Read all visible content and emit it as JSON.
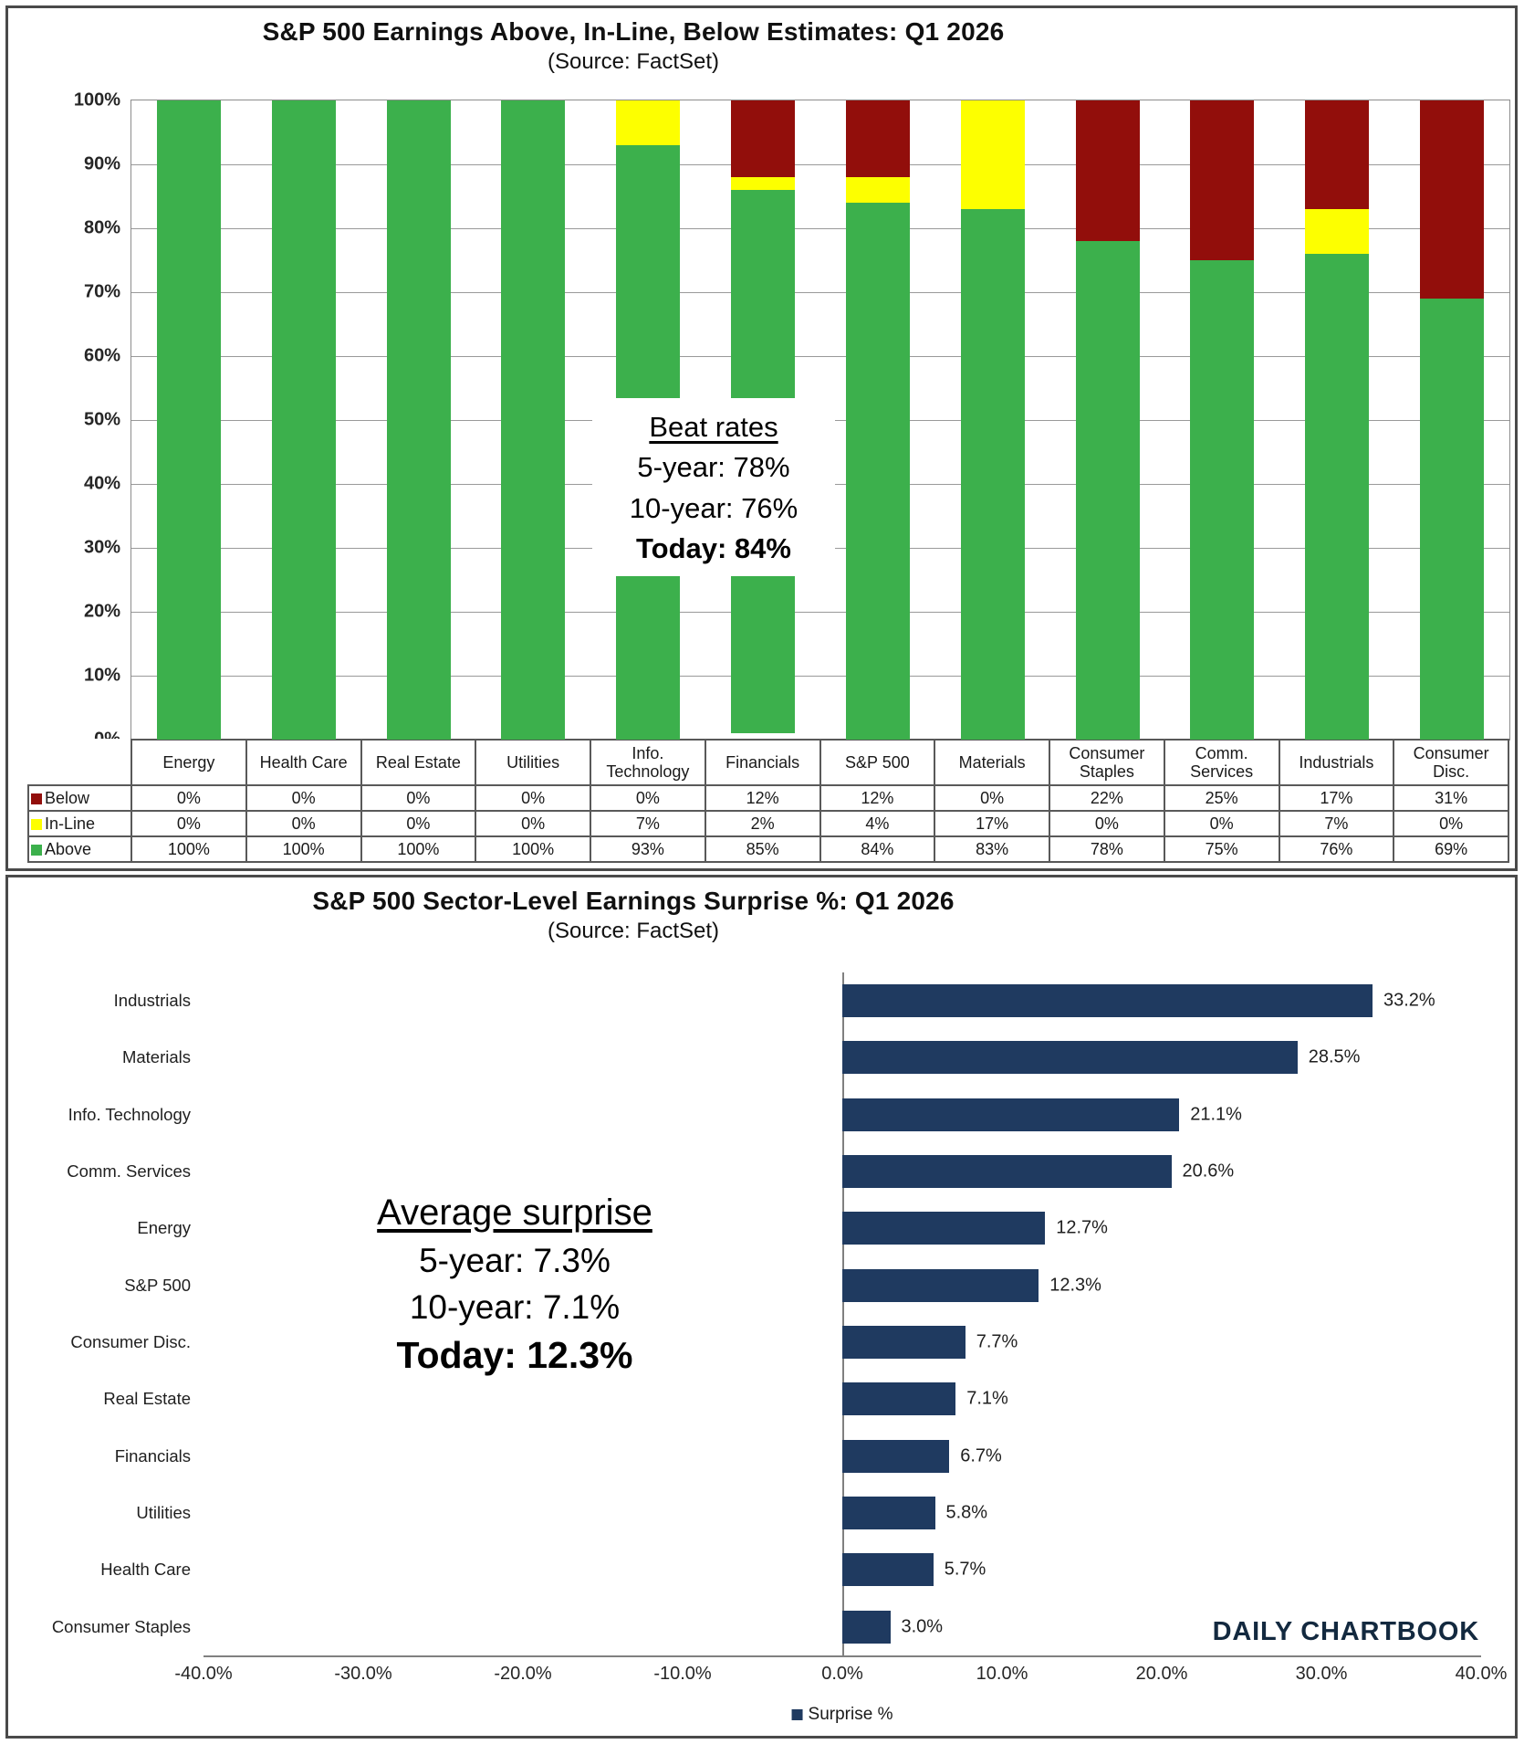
{
  "colors": {
    "above_green": "#3cb04c",
    "inline_yellow": "#fdff00",
    "below_red": "#920e0b",
    "surprise_navy": "#1f3a60",
    "grid": "#9a9a9a",
    "axis": "#808080",
    "watermark_navy": "#13293f"
  },
  "chart_data": [
    {
      "type": "bar",
      "orientation": "vertical",
      "stacked": true,
      "title": "S&P 500 Earnings Above, In-Line, Below Estimates: Q1 2026",
      "subtitle": "(Source: FactSet)",
      "categories": [
        "Energy",
        "Health Care",
        "Real Estate",
        "Utilities",
        "Info. Technology",
        "Financials",
        "S&P 500",
        "Materials",
        "Consumer Staples",
        "Comm. Services",
        "Industrials",
        "Consumer Disc."
      ],
      "series": [
        {
          "name": "Below",
          "color_key": "below_red",
          "values": [
            0,
            0,
            0,
            0,
            0,
            12,
            12,
            0,
            22,
            25,
            17,
            31
          ],
          "labels": [
            "0%",
            "0%",
            "0%",
            "0%",
            "0%",
            "12%",
            "12%",
            "0%",
            "22%",
            "25%",
            "17%",
            "31%"
          ]
        },
        {
          "name": "In-Line",
          "color_key": "inline_yellow",
          "values": [
            0,
            0,
            0,
            0,
            7,
            2,
            4,
            17,
            0,
            0,
            7,
            0
          ],
          "labels": [
            "0%",
            "0%",
            "0%",
            "0%",
            "7%",
            "2%",
            "4%",
            "17%",
            "0%",
            "0%",
            "7%",
            "0%"
          ]
        },
        {
          "name": "Above",
          "color_key": "above_green",
          "values": [
            100,
            100,
            100,
            100,
            93,
            85,
            84,
            83,
            78,
            75,
            76,
            69
          ],
          "labels": [
            "100%",
            "100%",
            "100%",
            "100%",
            "93%",
            "85%",
            "84%",
            "83%",
            "78%",
            "75%",
            "76%",
            "69%"
          ]
        }
      ],
      "ylim": [
        0,
        100
      ],
      "yticks": [
        "100%",
        "90%",
        "80%",
        "70%",
        "60%",
        "50%",
        "40%",
        "30%",
        "20%",
        "10%",
        "0%"
      ],
      "grid": true,
      "legend_position": "table-left",
      "annotation": {
        "heading": "Beat rates",
        "lines": [
          "5-year: 78%",
          "10-year: 76%"
        ],
        "emphasis_line": "Today: 84%"
      }
    },
    {
      "type": "bar",
      "orientation": "horizontal",
      "stacked": false,
      "title": "S&P 500 Sector-Level Earnings Surprise %: Q1 2026",
      "subtitle": "(Source: FactSet)",
      "categories": [
        "Industrials",
        "Materials",
        "Info. Technology",
        "Comm. Services",
        "Energy",
        "S&P 500",
        "Consumer Disc.",
        "Real Estate",
        "Financials",
        "Utilities",
        "Health Care",
        "Consumer Staples"
      ],
      "series": [
        {
          "name": "Surprise %",
          "color_key": "surprise_navy",
          "values": [
            33.2,
            28.5,
            21.1,
            20.6,
            12.7,
            12.3,
            7.7,
            7.1,
            6.7,
            5.8,
            5.7,
            3.0
          ],
          "labels": [
            "33.2%",
            "28.5%",
            "21.1%",
            "20.6%",
            "12.7%",
            "12.3%",
            "7.7%",
            "7.1%",
            "6.7%",
            "5.8%",
            "5.7%",
            "3.0%"
          ]
        }
      ],
      "xlim": [
        -40,
        40
      ],
      "xticks": [
        "-40.0%",
        "-30.0%",
        "-20.0%",
        "-10.0%",
        "0.0%",
        "10.0%",
        "20.0%",
        "30.0%",
        "40.0%"
      ],
      "grid": false,
      "legend": {
        "label": "Surprise %"
      },
      "annotation": {
        "heading": "Average surprise",
        "lines": [
          "5-year: 7.3%",
          "10-year: 7.1%"
        ],
        "emphasis_line": "Today: 12.3%"
      },
      "watermark": "DAILY CHARTBOOK"
    }
  ]
}
